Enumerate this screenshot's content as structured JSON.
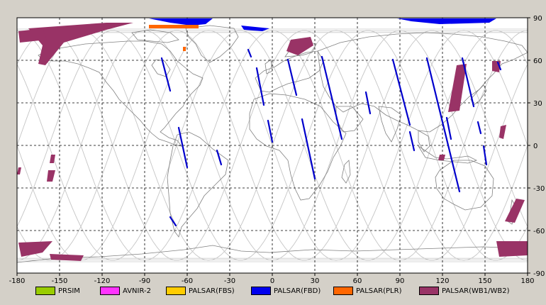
{
  "map": {
    "x_ticks": [
      "-180",
      "-150",
      "-120",
      "-90",
      "-60",
      "-30",
      "0",
      "30",
      "60",
      "90",
      "120",
      "150",
      "180"
    ],
    "y_ticks": [
      "90",
      "60",
      "30",
      "0",
      "-30",
      "-60",
      "-90"
    ],
    "lon_range": [
      -180,
      180
    ],
    "lat_range": [
      -90,
      90
    ],
    "grid": "dashed"
  },
  "legend": [
    {
      "label": "PRSIM",
      "color": "#99cc00"
    },
    {
      "label": "AVNIR-2",
      "color": "#ff33ff"
    },
    {
      "label": "PALSAR(FBS)",
      "color": "#ffcc00"
    },
    {
      "label": "PALSAR(FBD)",
      "color": "#0000ee"
    },
    {
      "label": "PALSAR(PLR)",
      "color": "#ff6600"
    },
    {
      "label": "PALSAR(WB1/WB2)",
      "color": "#993366"
    }
  ],
  "colors": {
    "map_bg": "#ffffff",
    "coastline": "#808080",
    "orbit": "#c8c8c8",
    "fbd": "#0000cc",
    "wb": "#993366",
    "plr": "#ff6600"
  }
}
